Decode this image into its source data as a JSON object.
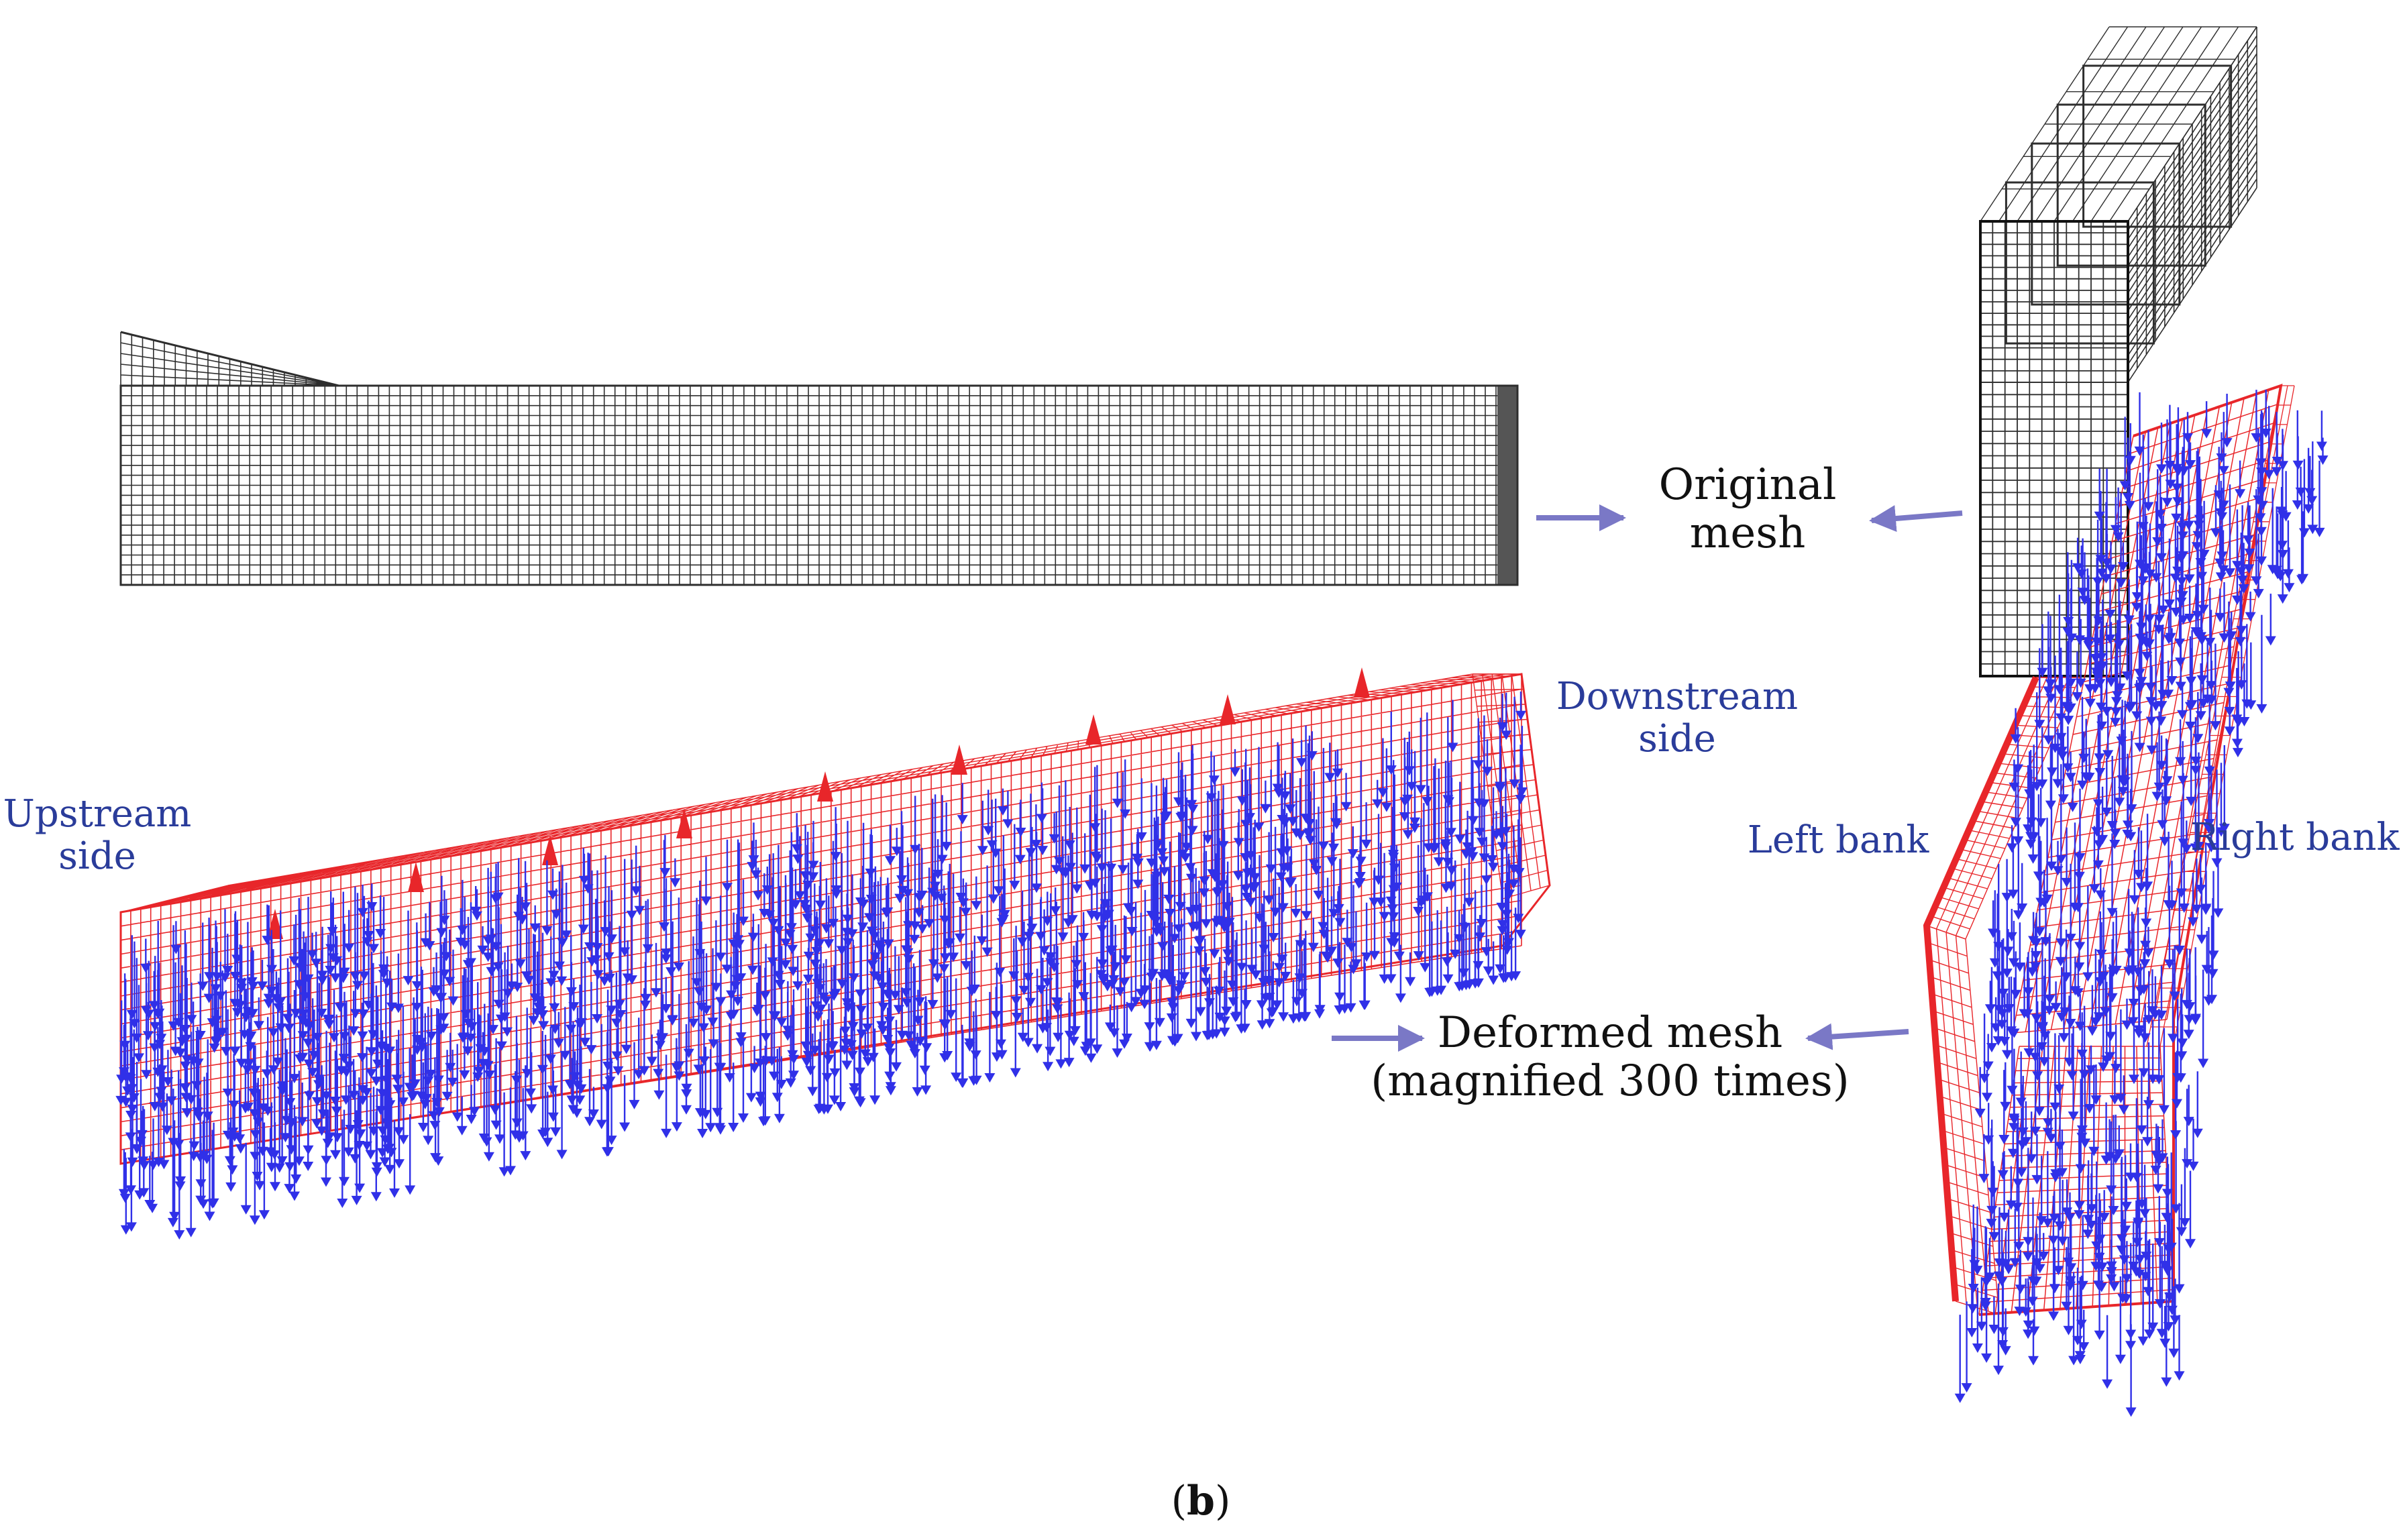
{
  "caption": {
    "open": "(",
    "letter": "b",
    "close": ")"
  },
  "labels": {
    "original_line1": "Original",
    "original_line2": "mesh",
    "deformed_line1": "Deformed mesh",
    "deformed_line2": "(magnified 300 times)",
    "downstream_line1": "Downstream",
    "downstream_line2": "side",
    "upstream_line1": "Upstream",
    "upstream_line2": "side",
    "left_bank": "Left bank",
    "right_bank": "Right bank"
  },
  "colors": {
    "original_mesh": "#2e2e2e",
    "deformed_mesh": "#e8262a",
    "load_arrows": "#3030e8",
    "pointer_arrows": "#7a78c6",
    "side_labels": "#2a3c9a",
    "text": "#111111"
  },
  "annotations": {
    "magnification_factor": 300
  }
}
